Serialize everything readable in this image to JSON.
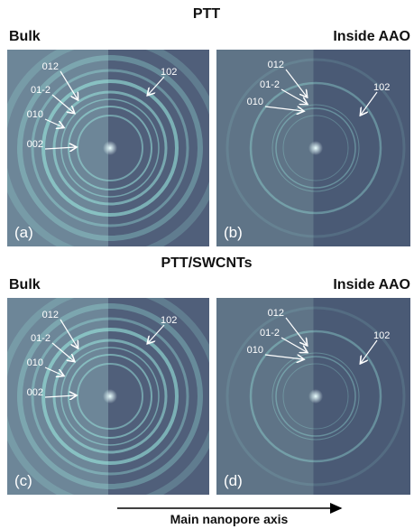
{
  "rows": [
    {
      "title": "PTT",
      "panels": [
        {
          "heading": "Bulk",
          "label": "(a)",
          "annotations": [
            "012",
            "01-2",
            "010",
            "002",
            "102"
          ]
        },
        {
          "heading": "Inside AAO",
          "label": "(b)",
          "annotations": [
            "012",
            "01-2",
            "010",
            "102"
          ]
        }
      ]
    },
    {
      "title": "PTT/SWCNTs",
      "panels": [
        {
          "heading": "Bulk",
          "label": "(c)",
          "annotations": [
            "012",
            "01-2",
            "010",
            "002",
            "102"
          ]
        },
        {
          "heading": "Inside AAO",
          "label": "(d)",
          "annotations": [
            "012",
            "01-2",
            "010",
            "102"
          ]
        }
      ]
    }
  ],
  "axis_label": "Main nanopore axis"
}
